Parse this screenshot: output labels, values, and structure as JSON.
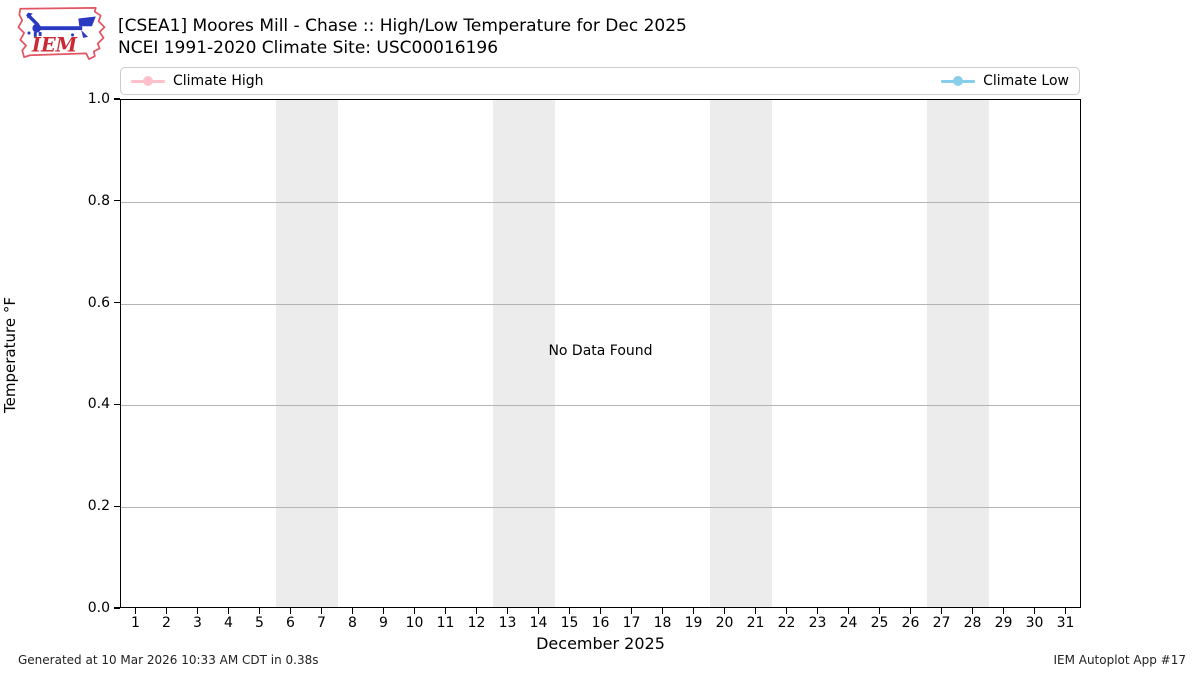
{
  "header": {
    "logo_text": "IEM"
  },
  "footer": {
    "left": "Generated at 10 Mar 2026 10:33 AM CDT in 0.38s",
    "right": "IEM Autoplot App #17"
  },
  "chart_data": {
    "type": "line",
    "title": "[CSEA1] Moores Mill - Chase :: High/Low Temperature for Dec 2025",
    "subtitle": "NCEI 1991-2020 Climate Site: USC00016196",
    "xlabel": "December 2025",
    "ylabel": "Temperature °F",
    "no_data_message": "No Data Found",
    "x": [
      1,
      2,
      3,
      4,
      5,
      6,
      7,
      8,
      9,
      10,
      11,
      12,
      13,
      14,
      15,
      16,
      17,
      18,
      19,
      20,
      21,
      22,
      23,
      24,
      25,
      26,
      27,
      28,
      29,
      30,
      31
    ],
    "xlim": [
      0.5,
      31.5
    ],
    "ylim": [
      0.0,
      1.0
    ],
    "yticks": [
      "0.0",
      "0.2",
      "0.4",
      "0.6",
      "0.8",
      "1.0"
    ],
    "grid": "horizontal-only",
    "legend_position": "top, high left / low right",
    "series": [
      {
        "name": "Climate High",
        "color": "#ffc0cb",
        "values": []
      },
      {
        "name": "Climate Low",
        "color": "#87ceeb",
        "values": []
      }
    ],
    "weekend_bands": [
      [
        5.5,
        7.5
      ],
      [
        12.5,
        14.5
      ],
      [
        19.5,
        21.5
      ],
      [
        26.5,
        28.5
      ]
    ],
    "band_color": "#ececec"
  }
}
